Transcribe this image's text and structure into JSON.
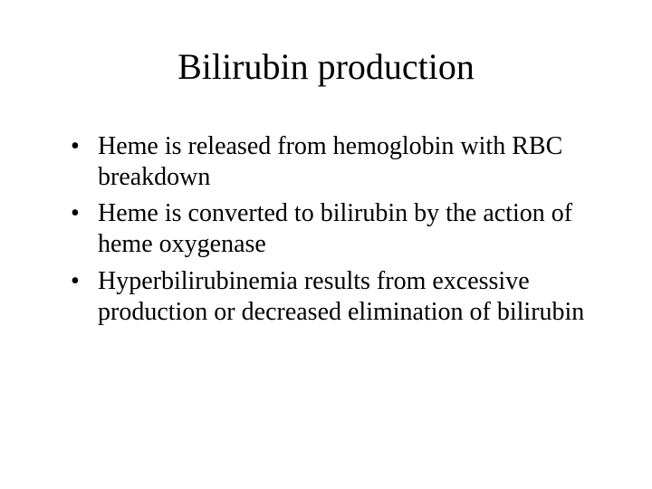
{
  "slide": {
    "title": "Bilirubin production",
    "bullets": [
      "Heme is released from hemoglobin with RBC breakdown",
      "Heme is converted to bilirubin by the action of heme oxygenase",
      "Hyperbilirubinemia results from excessive production or decreased elimination of bilirubin"
    ]
  },
  "style": {
    "background_color": "#ffffff",
    "text_color": "#000000",
    "font_family": "Times New Roman",
    "title_fontsize": 40,
    "body_fontsize": 28,
    "bullet_char": "•"
  }
}
